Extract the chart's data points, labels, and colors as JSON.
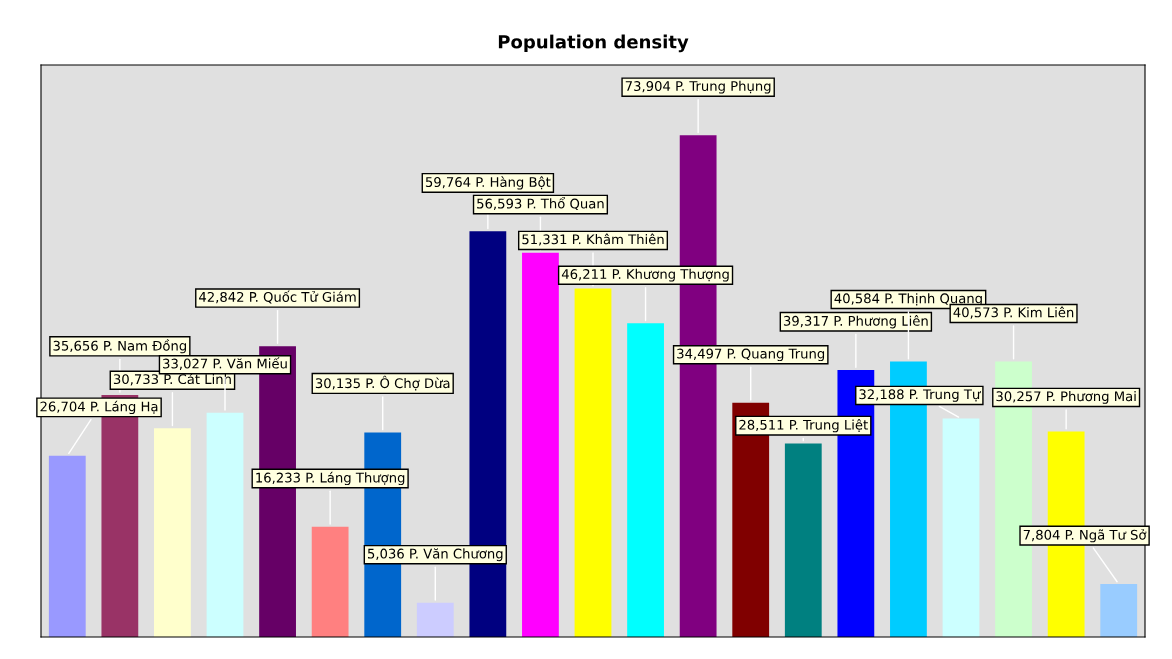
{
  "chart_data": {
    "type": "bar",
    "title": "Population density",
    "categories": [
      null,
      null,
      null,
      null,
      null,
      null,
      null,
      null,
      null,
      null,
      null,
      null,
      null,
      null,
      null,
      null,
      null,
      null,
      null,
      null,
      null
    ],
    "values": [
      26704,
      35656,
      30733,
      33027,
      42842,
      16233,
      30135,
      5036,
      59764,
      56593,
      51331,
      46211,
      73904,
      34497,
      28511,
      39317,
      40584,
      32188,
      40573,
      30257,
      7804
    ],
    "value_labels": [
      "26,704 P. Láng Hạ",
      "35,656 P. Nam Đồng",
      "30,733 P. Cát Linh",
      "33,027 P. Văn Miếu",
      "42,842 P. Quốc Tử Giám",
      "16,233 P. Láng Thượng",
      "30,135 P. Ô Chợ Dừa",
      "5,036 P. Văn Chương",
      "59,764 P. Hàng Bột",
      "56,593 P. Thổ Quan",
      "51,331 P. Khâm Thiên",
      "46,211 P. Khương Thượng",
      "73,904 P. Trung Phụng",
      "34,497 P. Quang Trung",
      "28,511 P. Trung Liệt",
      "39,317 P. Phương Liên",
      "40,584 P. Thịnh Quang",
      "32,188 P. Trung Tự",
      "40,573 P. Kim Liên",
      "30,257 P. Phương Mai",
      "7,804 P. Ngã Tư Sở"
    ],
    "colors": [
      "#9999ff",
      "#993366",
      "#ffffcc",
      "#ccffff",
      "#660066",
      "#ff8080",
      "#0066cc",
      "#ccccff",
      "#000080",
      "#ff00ff",
      "#ffff00",
      "#00ffff",
      "#800080",
      "#800000",
      "#008080",
      "#0000ff",
      "#00ccff",
      "#ccffff",
      "#ccffcc",
      "#ffff00",
      "#99ccff"
    ],
    "tick_labels": false,
    "grid": false,
    "legend": false
  }
}
